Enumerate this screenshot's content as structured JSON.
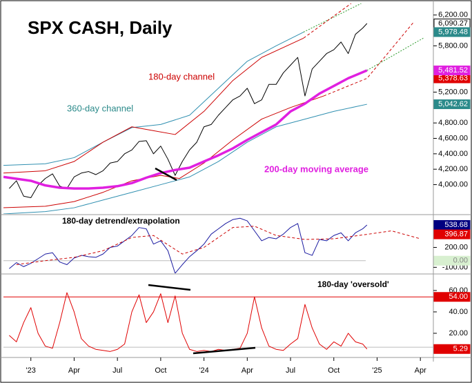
{
  "chart_data": [
    {
      "type": "line",
      "title": "SPX CASH, Daily",
      "annotations": [
        "180-day channel",
        "360-day channel",
        "200-day moving average"
      ],
      "xlim": [
        -1.9,
        27.9
      ],
      "ylim": [
        3620,
        6350
      ],
      "yticks": [
        {
          "value": 4000,
          "label": "4,000.00"
        },
        {
          "value": 4200,
          "label": "4,200.00"
        },
        {
          "value": 4400,
          "label": "4,400.00"
        },
        {
          "value": 4600,
          "label": "4,600.00"
        },
        {
          "value": 4800,
          "label": "4,800.00"
        },
        {
          "value": 5200,
          "label": "5,200.00"
        },
        {
          "value": 5800,
          "label": "5,800.00"
        },
        {
          "value": 6200,
          "label": "6,200.00"
        }
      ],
      "series": [
        {
          "color": "#000000",
          "label_bg": "#ffffff",
          "x": [
            -1.5,
            -1,
            -0.5,
            0,
            0.5,
            1,
            1.5,
            2,
            2.5,
            3,
            3.5,
            4,
            4.5,
            5,
            5.5,
            6,
            6.5,
            7,
            7.5,
            8,
            8.5,
            9,
            9.5,
            10,
            10.5,
            11,
            11.5,
            12,
            12.5,
            13,
            13.5,
            14,
            14.5,
            15,
            15.5,
            16,
            16.5,
            17,
            17.5,
            18,
            18.5,
            19,
            19.5,
            20,
            20.5,
            21,
            21.5,
            22,
            22.5,
            23,
            23.3
          ],
          "values": [
            3950,
            4050,
            3850,
            3830,
            3990,
            4080,
            4140,
            3980,
            3950,
            4100,
            4150,
            4170,
            4130,
            4180,
            4280,
            4300,
            4400,
            4450,
            4560,
            4570,
            4400,
            4500,
            4330,
            4120,
            4300,
            4450,
            4550,
            4750,
            4780,
            4900,
            5000,
            5100,
            5150,
            5250,
            5050,
            5100,
            5300,
            5300,
            5450,
            5550,
            5650,
            5150,
            5500,
            5600,
            5700,
            5750,
            5850,
            5700,
            5950,
            6030,
            6090.27
          ],
          "value_labels": [
            null,
            null,
            null,
            null,
            null,
            null,
            null,
            null,
            null,
            null,
            null,
            null,
            null,
            null,
            null,
            null,
            null,
            null,
            null,
            null,
            null,
            null,
            null,
            null,
            null,
            null,
            null,
            null,
            null,
            null,
            null,
            null,
            null,
            null,
            null,
            null,
            null,
            null,
            null,
            null,
            null,
            null,
            null,
            null,
            null,
            null,
            null,
            null,
            null,
            null,
            "6,090.27"
          ]
        },
        {
          "color": "#2f8fb0",
          "label_bg": "#2b8a8a",
          "x": [
            -1.9,
            1,
            3,
            5,
            7,
            9,
            11,
            13,
            15,
            17,
            18.9
          ],
          "values": [
            4250,
            4270,
            4350,
            4550,
            4740,
            4780,
            4900,
            5250,
            5600,
            5800,
            5978.48
          ],
          "value_labels": [
            null,
            null,
            null,
            null,
            null,
            null,
            null,
            null,
            null,
            null,
            "5,978.48"
          ]
        },
        {
          "color": "#2a9a2a",
          "style": "dotted",
          "x": [
            18.9,
            22.9
          ],
          "values": [
            5978.48,
            6350
          ]
        },
        {
          "color": "#cc0000",
          "x": [
            -1.9,
            1,
            3,
            5,
            7,
            8.5,
            10,
            12,
            14,
            16,
            18.9
          ],
          "values": [
            4150,
            4180,
            4300,
            4550,
            4750,
            4700,
            4650,
            4950,
            5350,
            5650,
            5900
          ]
        },
        {
          "color": "#cc0000",
          "style": "dashed",
          "x": [
            18.9,
            22.2
          ],
          "values": [
            5900,
            6350
          ]
        },
        {
          "color": "#cc0000",
          "x": [
            -1.9,
            1,
            3,
            5,
            7,
            9,
            10.3,
            12,
            14,
            16,
            18,
            20.3
          ],
          "values": [
            3700,
            3720,
            3780,
            3900,
            4050,
            4120,
            4080,
            4280,
            4580,
            4850,
            5000,
            5150
          ]
        },
        {
          "color": "#cc0000",
          "style": "dashed",
          "label_bg": "#e00000",
          "x": [
            20.3,
            23.3,
            26.5
          ],
          "values": [
            5150,
            5378.63,
            6100
          ],
          "value_labels": [
            null,
            "5,378.63",
            null
          ]
        },
        {
          "color": "#2f8fb0",
          "label_bg": "#2b8a8a",
          "x": [
            -1.9,
            1,
            3,
            5,
            7,
            9,
            11,
            13,
            15,
            17,
            19,
            21,
            23.3
          ],
          "values": [
            3620,
            3650,
            3700,
            3800,
            3900,
            4000,
            4100,
            4300,
            4550,
            4750,
            4850,
            4950,
            5042.62
          ],
          "value_labels": [
            null,
            null,
            null,
            null,
            null,
            null,
            null,
            null,
            null,
            null,
            null,
            null,
            "5,042.62"
          ]
        },
        {
          "color": "#e020e0",
          "style": "thick",
          "label_bg": "#e020e0",
          "x": [
            -1.9,
            0,
            1,
            2,
            3,
            4,
            5,
            6,
            7,
            8,
            9,
            10,
            11,
            12,
            13,
            14,
            15,
            16,
            17,
            18,
            19,
            20,
            21,
            22,
            23.3
          ],
          "values": [
            4100,
            4050,
            3990,
            3960,
            3950,
            3950,
            3960,
            3980,
            4020,
            4090,
            4150,
            4190,
            4220,
            4300,
            4380,
            4470,
            4580,
            4680,
            4780,
            4950,
            5050,
            5180,
            5280,
            5380,
            5481.52
          ],
          "value_labels": [
            null,
            null,
            null,
            null,
            null,
            null,
            null,
            null,
            null,
            null,
            null,
            null,
            null,
            null,
            null,
            null,
            null,
            null,
            null,
            null,
            null,
            null,
            null,
            null,
            "5,481.52"
          ]
        },
        {
          "color": "#2a9a2a",
          "style": "dotted",
          "x": [
            23.3,
            27.2
          ],
          "values": [
            5481.52,
            5900
          ]
        }
      ]
    },
    {
      "type": "line",
      "annotations": [
        "180-day detrend/extrapolation"
      ],
      "xlim": [
        -1.9,
        27.9
      ],
      "ylim": [
        -190,
        684
      ],
      "yticks": [
        {
          "value": -100,
          "label": "-100.00"
        },
        {
          "value": 200,
          "label": "200.00"
        }
      ],
      "reference_lines": [
        {
          "value": 0,
          "label": "0.00",
          "color": "#bbbbbb",
          "label_bg": "#d8f0d0"
        }
      ],
      "x": [
        -1.5,
        -1,
        -0.5,
        0,
        0.5,
        1,
        1.5,
        2,
        2.5,
        3,
        3.5,
        4,
        4.5,
        5,
        5.5,
        6,
        6.5,
        7,
        7.5,
        8,
        8.5,
        9,
        9.5,
        10,
        10.5,
        11,
        11.5,
        12,
        12.5,
        13,
        13.5,
        14,
        14.5,
        15,
        15.5,
        16,
        16.5,
        17,
        17.5,
        18,
        18.5,
        19,
        19.5,
        20,
        20.5,
        21,
        21.5,
        22,
        22.5,
        23,
        23.3
      ],
      "series": [
        {
          "color": "#1a1aa0",
          "label_bg": "#000080",
          "values": [
            -120,
            -30,
            -90,
            -40,
            30,
            100,
            120,
            -20,
            -60,
            40,
            80,
            60,
            50,
            100,
            200,
            220,
            300,
            380,
            500,
            480,
            250,
            300,
            150,
            -190,
            -60,
            60,
            150,
            250,
            400,
            480,
            560,
            620,
            640,
            600,
            450,
            300,
            350,
            330,
            400,
            500,
            560,
            120,
            80,
            320,
            300,
            380,
            420,
            300,
            420,
            480,
            538.68
          ],
          "value_labels": [
            null,
            null,
            null,
            null,
            null,
            null,
            null,
            null,
            null,
            null,
            null,
            null,
            null,
            null,
            null,
            null,
            null,
            null,
            null,
            null,
            null,
            null,
            null,
            null,
            null,
            null,
            null,
            null,
            null,
            null,
            null,
            null,
            null,
            null,
            null,
            null,
            null,
            null,
            null,
            null,
            null,
            null,
            null,
            null,
            null,
            null,
            null,
            null,
            null,
            null,
            "538.68"
          ]
        },
        {
          "color": "#cc0000",
          "style": "dashed",
          "label_bg": "#e00000",
          "x": [
            -1,
            1,
            3,
            5,
            7,
            8.5,
            10.5,
            12,
            14,
            15.5,
            17,
            19,
            21,
            23.3,
            25,
            27
          ],
          "values": [
            -60,
            0,
            50,
            150,
            350,
            380,
            100,
            200,
            500,
            520,
            380,
            320,
            330,
            396.87,
            450,
            330
          ],
          "value_labels": [
            null,
            null,
            null,
            null,
            null,
            null,
            null,
            null,
            null,
            null,
            null,
            null,
            null,
            "396.87",
            null,
            null
          ]
        }
      ]
    },
    {
      "type": "line",
      "annotations": [
        "180-day 'oversold'"
      ],
      "xlim": [
        -1.9,
        27.9
      ],
      "ylim": [
        -2.6,
        74.8
      ],
      "yticks": [
        {
          "value": 20,
          "label": "20.00"
        },
        {
          "value": 40,
          "label": "40.00"
        },
        {
          "value": 60,
          "label": "60.00"
        }
      ],
      "xticks": [
        {
          "value": 0,
          "label": "'23"
        },
        {
          "value": 3,
          "label": "Apr"
        },
        {
          "value": 6,
          "label": "Jul"
        },
        {
          "value": 9,
          "label": "Oct"
        },
        {
          "value": 12,
          "label": "'24"
        },
        {
          "value": 15,
          "label": "Apr"
        },
        {
          "value": 18,
          "label": "Jul"
        },
        {
          "value": 21,
          "label": "Oct"
        },
        {
          "value": 24,
          "label": "'25"
        },
        {
          "value": 27,
          "label": "Apr"
        }
      ],
      "reference_lines": [
        {
          "value": 54,
          "label": "54.00",
          "color": "#e00000",
          "label_bg": "#e00000"
        },
        {
          "value": 7,
          "color": "#bbbbbb"
        }
      ],
      "x": [
        -1.5,
        -1,
        -0.5,
        0,
        0.5,
        1,
        1.5,
        2,
        2.5,
        3,
        3.5,
        4,
        4.5,
        5,
        5.5,
        6,
        6.5,
        7,
        7.5,
        8,
        8.5,
        9,
        9.5,
        10,
        10.5,
        11,
        11.5,
        12,
        12.5,
        13,
        13.5,
        14,
        14.5,
        15,
        15.5,
        16,
        16.5,
        17,
        17.5,
        18,
        18.5,
        19,
        19.5,
        20,
        20.5,
        21,
        21.5,
        22,
        22.5,
        23,
        23.3
      ],
      "series": [
        {
          "color": "#e00000",
          "label_bg": "#e00000",
          "values": [
            18,
            12,
            30,
            44,
            20,
            8,
            6,
            30,
            58,
            40,
            15,
            8,
            5,
            4,
            3,
            5,
            10,
            40,
            56,
            30,
            40,
            57,
            30,
            55,
            20,
            5,
            3,
            4,
            3,
            5,
            4,
            5,
            6,
            20,
            54,
            25,
            8,
            5,
            4,
            10,
            15,
            47,
            25,
            10,
            5,
            12,
            8,
            20,
            12,
            10,
            5.29
          ],
          "value_labels": [
            null,
            null,
            null,
            null,
            null,
            null,
            null,
            null,
            null,
            null,
            null,
            null,
            null,
            null,
            null,
            null,
            null,
            null,
            null,
            null,
            null,
            null,
            null,
            null,
            null,
            null,
            null,
            null,
            null,
            null,
            null,
            null,
            null,
            null,
            null,
            null,
            null,
            null,
            null,
            null,
            null,
            null,
            null,
            null,
            null,
            null,
            null,
            null,
            null,
            null,
            "5.29"
          ]
        }
      ]
    }
  ]
}
